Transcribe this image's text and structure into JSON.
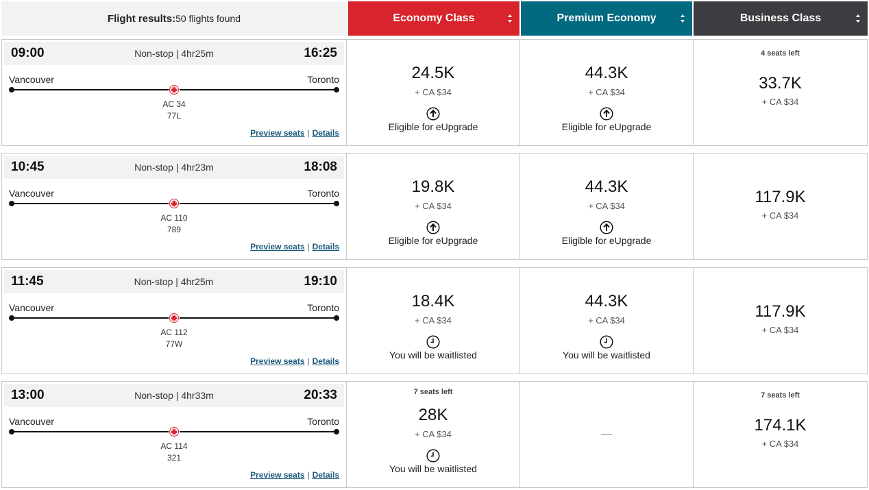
{
  "header": {
    "title_bold": "Flight results:",
    "title_count": "50 flights found",
    "economy": "Economy Class",
    "premium": "Premium Economy",
    "business": "Business Class"
  },
  "colors": {
    "economy": "#d8242d",
    "premium": "#016a80",
    "business": "#3c3d40",
    "link": "#1b5a7e"
  },
  "flights": [
    {
      "depart": "09:00",
      "arrive": "16:25",
      "duration": "Non-stop | 4hr25m",
      "origin": "Vancouver",
      "destination": "Toronto",
      "flight_no": "AC 34",
      "aircraft": "77L",
      "preview": "Preview seats",
      "details": "Details",
      "economy": {
        "points": "24.5K",
        "cash": "+ CA $34",
        "note": "Eligible for eUpgrade",
        "icon": "upgrade-icon"
      },
      "premium": {
        "points": "44.3K",
        "cash": "+ CA $34",
        "note": "Eligible for eUpgrade",
        "icon": "upgrade-icon"
      },
      "business": {
        "seats": "4 seats left",
        "points": "33.7K",
        "cash": "+ CA $34"
      }
    },
    {
      "depart": "10:45",
      "arrive": "18:08",
      "duration": "Non-stop | 4hr23m",
      "origin": "Vancouver",
      "destination": "Toronto",
      "flight_no": "AC 110",
      "aircraft": "789",
      "preview": "Preview seats",
      "details": "Details",
      "economy": {
        "points": "19.8K",
        "cash": "+ CA $34",
        "note": "Eligible for eUpgrade",
        "icon": "upgrade-icon"
      },
      "premium": {
        "points": "44.3K",
        "cash": "+ CA $34",
        "note": "Eligible for eUpgrade",
        "icon": "upgrade-icon"
      },
      "business": {
        "points": "117.9K",
        "cash": "+ CA $34"
      }
    },
    {
      "depart": "11:45",
      "arrive": "19:10",
      "duration": "Non-stop | 4hr25m",
      "origin": "Vancouver",
      "destination": "Toronto",
      "flight_no": "AC 112",
      "aircraft": "77W",
      "preview": "Preview seats",
      "details": "Details",
      "economy": {
        "points": "18.4K",
        "cash": "+ CA $34",
        "note": "You will be waitlisted",
        "icon": "clock-icon"
      },
      "premium": {
        "points": "44.3K",
        "cash": "+ CA $34",
        "note": "You will be waitlisted",
        "icon": "clock-icon"
      },
      "business": {
        "points": "117.9K",
        "cash": "+ CA $34"
      }
    },
    {
      "depart": "13:00",
      "arrive": "20:33",
      "duration": "Non-stop | 4hr33m",
      "origin": "Vancouver",
      "destination": "Toronto",
      "flight_no": "AC 114",
      "aircraft": "321",
      "preview": "Preview seats",
      "details": "Details",
      "economy": {
        "seats": "7 seats left",
        "points": "28K",
        "cash": "+ CA $34",
        "note": "You will be waitlisted",
        "icon": "clock-icon"
      },
      "premium": {
        "unavailable": "—"
      },
      "business": {
        "seats": "7 seats left",
        "points": "174.1K",
        "cash": "+ CA $34"
      }
    }
  ]
}
